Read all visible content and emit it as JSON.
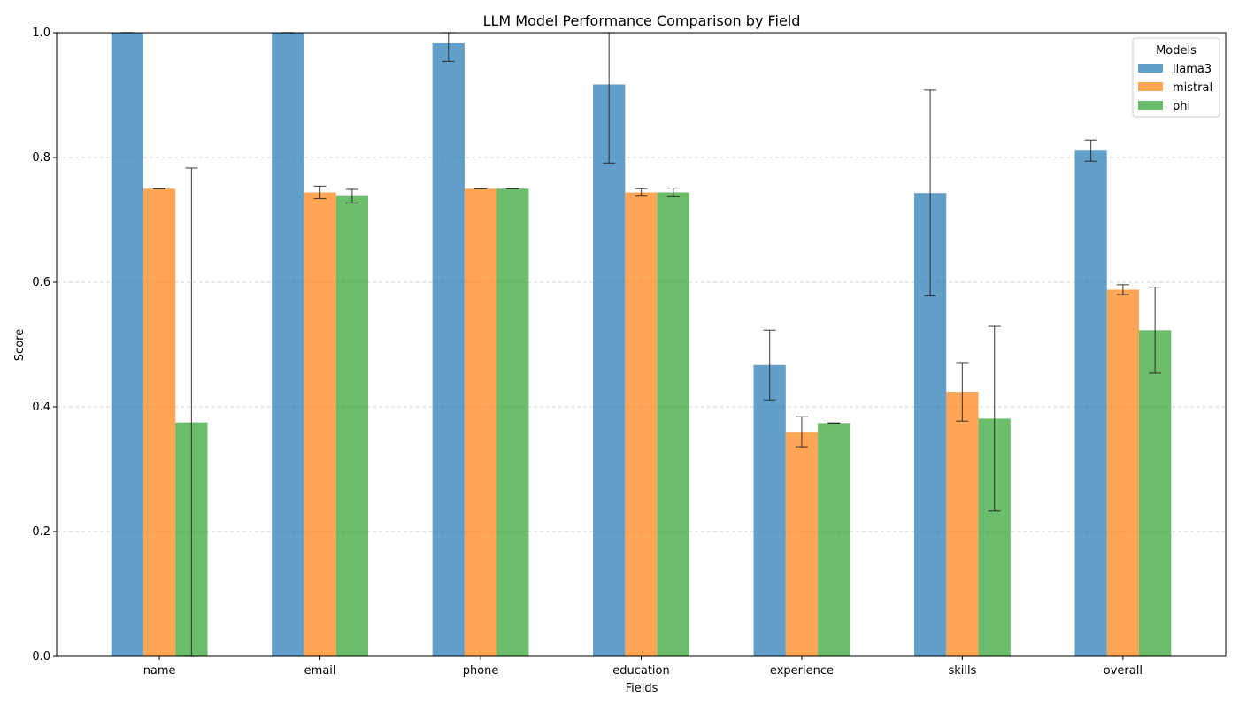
{
  "chart_data": {
    "type": "bar",
    "title": "LLM Model Performance Comparison by Field",
    "xlabel": "Fields",
    "ylabel": "Score",
    "ylim": [
      0,
      1.0
    ],
    "yticks": [
      0.0,
      0.2,
      0.4,
      0.6,
      0.8,
      1.0
    ],
    "grid": "y-dashed",
    "categories": [
      "name",
      "email",
      "phone",
      "education",
      "experience",
      "skills",
      "overall"
    ],
    "series": [
      {
        "name": "llama3",
        "color": "#1f77b4",
        "values": [
          1.0,
          1.0,
          0.983,
          0.917,
          0.467,
          0.743,
          0.811
        ],
        "errors": [
          0.0,
          0.0,
          0.029,
          0.126,
          0.056,
          0.165,
          0.017
        ]
      },
      {
        "name": "mistral",
        "color": "#ff7f0e",
        "values": [
          0.75,
          0.744,
          0.75,
          0.744,
          0.36,
          0.424,
          0.588
        ],
        "errors": [
          0.0,
          0.01,
          0.0,
          0.006,
          0.024,
          0.047,
          0.008
        ]
      },
      {
        "name": "phi",
        "color": "#2ca02c",
        "values": [
          0.375,
          0.738,
          0.75,
          0.744,
          0.374,
          0.381,
          0.523
        ],
        "errors": [
          0.408,
          0.011,
          0.0,
          0.007,
          0.0,
          0.148,
          0.069
        ]
      }
    ],
    "legend": {
      "title": "Models",
      "placement": "top-right"
    }
  }
}
